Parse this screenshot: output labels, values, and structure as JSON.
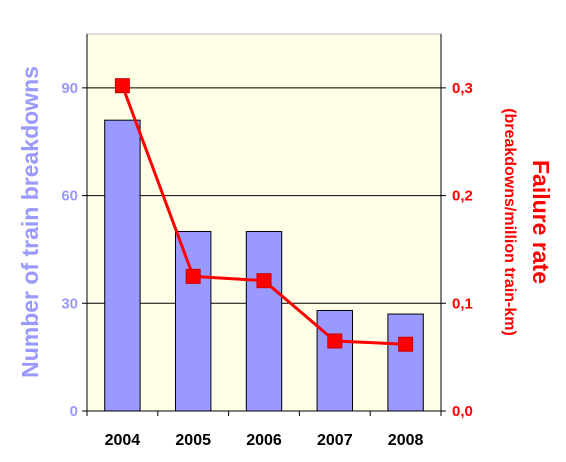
{
  "chart_data": {
    "type": "bar",
    "categories": [
      "2004",
      "2005",
      "2006",
      "2007",
      "2008"
    ],
    "series": [
      {
        "name": "Number of train breakdowns",
        "type": "bar",
        "axis": "left",
        "values": [
          81,
          50,
          50,
          28,
          27
        ]
      },
      {
        "name": "Failure rate",
        "type": "line",
        "axis": "right",
        "values": [
          0.302,
          0.125,
          0.121,
          0.065,
          0.062
        ]
      }
    ],
    "y_left": {
      "label": "Number of train breakdowns",
      "range": [
        0,
        105
      ],
      "ticks": [
        0,
        30,
        60,
        90
      ],
      "tick_labels": [
        "0",
        "30",
        "60",
        "90"
      ]
    },
    "y_right": {
      "label": "Failure rate",
      "label_sub": "(breakdowns/million train-km)",
      "range": [
        0,
        0.35
      ],
      "ticks": [
        0,
        0.1,
        0.2,
        0.3
      ],
      "tick_labels": [
        "0,0",
        "0,1",
        "0,2",
        "0,3"
      ]
    },
    "grid": true,
    "legend": "none",
    "colors": {
      "plot_background": "#ffffe8",
      "bar_fill": "#9999ff",
      "bar_stroke": "#000000",
      "left_axis_text": "#9999ff",
      "right_axis_text": "#ff0000",
      "line": "#ff0000",
      "marker": "#ff0000",
      "gridline": "#000000"
    }
  }
}
